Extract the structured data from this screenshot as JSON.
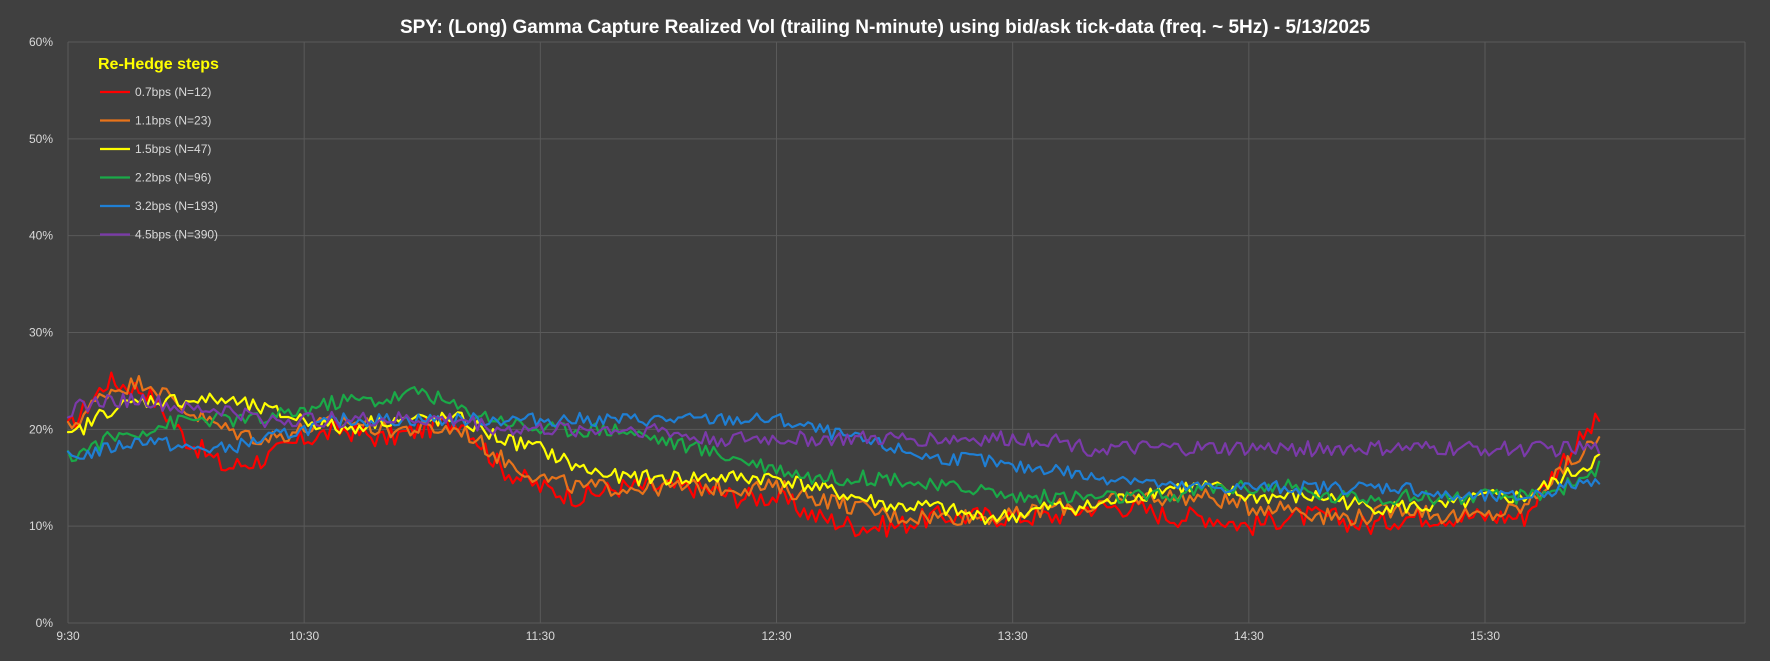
{
  "chart_data": {
    "type": "line",
    "title": "SPY: (Long) Gamma Capture Realized Vol (trailing N-minute) using bid/ask tick-data (freq. ~ 5Hz) - 5/13/2025",
    "xlabel": "",
    "ylabel": "",
    "x_range": [
      "9:30",
      "15:59"
    ],
    "x_ticks": [
      "9:30",
      "10:30",
      "11:30",
      "12:30",
      "13:30",
      "14:30",
      "15:30"
    ],
    "y_ticks": [
      "0%",
      "10%",
      "20%",
      "30%",
      "40%",
      "50%",
      "60%"
    ],
    "ylim": [
      0,
      60
    ],
    "grid": true,
    "legend_title": "Re-Hedge steps",
    "legend_position": "top-left",
    "colors": {
      "background": "#404040",
      "grid": "#5a5a5a",
      "text": "#d9d9d9",
      "title": "#ffffff",
      "legend_title": "#ffff00"
    },
    "series": [
      {
        "name": "0.7bps  (N=12)",
        "color": "#ff0000",
        "points": [
          [
            "9:30",
            20
          ],
          [
            "9:40",
            25
          ],
          [
            "9:50",
            24
          ],
          [
            "10:00",
            19
          ],
          [
            "10:10",
            16
          ],
          [
            "10:20",
            17
          ],
          [
            "10:30",
            19
          ],
          [
            "10:40",
            20
          ],
          [
            "10:50",
            19
          ],
          [
            "11:00",
            20
          ],
          [
            "11:10",
            21
          ],
          [
            "11:20",
            16
          ],
          [
            "11:30",
            14
          ],
          [
            "11:40",
            13
          ],
          [
            "11:50",
            14
          ],
          [
            "12:00",
            14
          ],
          [
            "12:10",
            14
          ],
          [
            "12:20",
            13
          ],
          [
            "12:30",
            13
          ],
          [
            "12:40",
            11
          ],
          [
            "12:50",
            10
          ],
          [
            "13:00",
            10
          ],
          [
            "13:10",
            11
          ],
          [
            "13:20",
            11
          ],
          [
            "13:30",
            11
          ],
          [
            "13:40",
            11
          ],
          [
            "13:50",
            12
          ],
          [
            "14:00",
            12
          ],
          [
            "14:10",
            11
          ],
          [
            "14:20",
            11
          ],
          [
            "14:30",
            10
          ],
          [
            "14:40",
            11
          ],
          [
            "14:50",
            11
          ],
          [
            "15:00",
            10
          ],
          [
            "15:10",
            11
          ],
          [
            "15:20",
            11
          ],
          [
            "15:30",
            11
          ],
          [
            "15:40",
            11
          ],
          [
            "15:50",
            17
          ],
          [
            "15:59",
            21
          ]
        ]
      },
      {
        "name": "1.1bps  (N=23)",
        "color": "#e8731a",
        "points": [
          [
            "9:30",
            20
          ],
          [
            "9:40",
            24
          ],
          [
            "9:50",
            25
          ],
          [
            "10:00",
            22
          ],
          [
            "10:10",
            20
          ],
          [
            "10:20",
            19
          ],
          [
            "10:30",
            20
          ],
          [
            "10:40",
            21
          ],
          [
            "10:50",
            20
          ],
          [
            "11:00",
            20
          ],
          [
            "11:10",
            20
          ],
          [
            "11:20",
            17
          ],
          [
            "11:30",
            15
          ],
          [
            "11:40",
            14
          ],
          [
            "11:50",
            14
          ],
          [
            "12:00",
            14
          ],
          [
            "12:10",
            14
          ],
          [
            "12:20",
            14
          ],
          [
            "12:30",
            14
          ],
          [
            "12:40",
            13
          ],
          [
            "12:50",
            12
          ],
          [
            "13:00",
            11
          ],
          [
            "13:10",
            11
          ],
          [
            "13:20",
            11
          ],
          [
            "13:30",
            11
          ],
          [
            "13:40",
            12
          ],
          [
            "13:50",
            12
          ],
          [
            "14:00",
            13
          ],
          [
            "14:10",
            13
          ],
          [
            "14:20",
            13
          ],
          [
            "14:30",
            12
          ],
          [
            "14:40",
            12
          ],
          [
            "14:50",
            11
          ],
          [
            "15:00",
            11
          ],
          [
            "15:10",
            12
          ],
          [
            "15:20",
            11
          ],
          [
            "15:30",
            11
          ],
          [
            "15:40",
            12
          ],
          [
            "15:50",
            16
          ],
          [
            "15:59",
            19
          ]
        ]
      },
      {
        "name": "1.5bps  (N=47)",
        "color": "#ffff00",
        "points": [
          [
            "9:30",
            19
          ],
          [
            "9:40",
            22
          ],
          [
            "9:50",
            23
          ],
          [
            "10:00",
            23
          ],
          [
            "10:10",
            23
          ],
          [
            "10:20",
            22
          ],
          [
            "10:30",
            21
          ],
          [
            "10:40",
            20
          ],
          [
            "10:50",
            21
          ],
          [
            "11:00",
            21
          ],
          [
            "11:10",
            21
          ],
          [
            "11:20",
            19
          ],
          [
            "11:30",
            18
          ],
          [
            "11:40",
            16
          ],
          [
            "11:50",
            15
          ],
          [
            "12:00",
            15
          ],
          [
            "12:10",
            15
          ],
          [
            "12:20",
            15
          ],
          [
            "12:30",
            15
          ],
          [
            "12:40",
            14
          ],
          [
            "12:50",
            13
          ],
          [
            "13:00",
            12
          ],
          [
            "13:10",
            12
          ],
          [
            "13:20",
            11
          ],
          [
            "13:30",
            11
          ],
          [
            "13:40",
            12
          ],
          [
            "13:50",
            12
          ],
          [
            "14:00",
            13
          ],
          [
            "14:10",
            14
          ],
          [
            "14:20",
            14
          ],
          [
            "14:30",
            13
          ],
          [
            "14:40",
            13
          ],
          [
            "14:50",
            13
          ],
          [
            "15:00",
            12
          ],
          [
            "15:10",
            12
          ],
          [
            "15:20",
            12
          ],
          [
            "15:30",
            13
          ],
          [
            "15:40",
            13
          ],
          [
            "15:50",
            15
          ],
          [
            "15:59",
            17
          ]
        ]
      },
      {
        "name": "2.2bps  (N=96)",
        "color": "#1aaa48",
        "points": [
          [
            "9:30",
            17
          ],
          [
            "9:40",
            19
          ],
          [
            "9:50",
            20
          ],
          [
            "10:00",
            21
          ],
          [
            "10:10",
            21
          ],
          [
            "10:20",
            21
          ],
          [
            "10:30",
            22
          ],
          [
            "10:40",
            23
          ],
          [
            "10:50",
            23
          ],
          [
            "11:00",
            24
          ],
          [
            "11:10",
            22
          ],
          [
            "11:20",
            21
          ],
          [
            "11:30",
            20
          ],
          [
            "11:40",
            20
          ],
          [
            "11:50",
            20
          ],
          [
            "12:00",
            19
          ],
          [
            "12:10",
            18
          ],
          [
            "12:20",
            17
          ],
          [
            "12:30",
            16
          ],
          [
            "12:40",
            15
          ],
          [
            "12:50",
            15
          ],
          [
            "13:00",
            15
          ],
          [
            "13:10",
            14
          ],
          [
            "13:20",
            14
          ],
          [
            "13:30",
            13
          ],
          [
            "13:40",
            13
          ],
          [
            "13:50",
            13
          ],
          [
            "14:00",
            13
          ],
          [
            "14:10",
            13
          ],
          [
            "14:20",
            14
          ],
          [
            "14:30",
            14
          ],
          [
            "14:40",
            14
          ],
          [
            "14:50",
            13
          ],
          [
            "15:00",
            13
          ],
          [
            "15:10",
            13
          ],
          [
            "15:20",
            13
          ],
          [
            "15:30",
            13
          ],
          [
            "15:40",
            13
          ],
          [
            "15:50",
            14
          ],
          [
            "15:59",
            16
          ]
        ]
      },
      {
        "name": "3.2bps  (N=193)",
        "color": "#1f7fd4",
        "points": [
          [
            "9:30",
            17
          ],
          [
            "9:40",
            18
          ],
          [
            "9:50",
            19
          ],
          [
            "10:00",
            18
          ],
          [
            "10:10",
            18
          ],
          [
            "10:20",
            19
          ],
          [
            "10:30",
            20
          ],
          [
            "10:40",
            21
          ],
          [
            "10:50",
            21
          ],
          [
            "11:00",
            21
          ],
          [
            "11:10",
            21
          ],
          [
            "11:20",
            21
          ],
          [
            "11:30",
            21
          ],
          [
            "11:40",
            21
          ],
          [
            "11:50",
            21
          ],
          [
            "12:00",
            21
          ],
          [
            "12:10",
            21
          ],
          [
            "12:20",
            21
          ],
          [
            "12:30",
            21
          ],
          [
            "12:40",
            20
          ],
          [
            "12:50",
            19
          ],
          [
            "13:00",
            18
          ],
          [
            "13:10",
            17
          ],
          [
            "13:20",
            17
          ],
          [
            "13:30",
            16
          ],
          [
            "13:40",
            16
          ],
          [
            "13:50",
            15
          ],
          [
            "14:00",
            15
          ],
          [
            "14:10",
            14
          ],
          [
            "14:20",
            14
          ],
          [
            "14:30",
            14
          ],
          [
            "14:40",
            14
          ],
          [
            "14:50",
            14
          ],
          [
            "15:00",
            14
          ],
          [
            "15:10",
            14
          ],
          [
            "15:20",
            13
          ],
          [
            "15:30",
            13
          ],
          [
            "15:40",
            13
          ],
          [
            "15:50",
            14
          ],
          [
            "15:59",
            15
          ]
        ]
      },
      {
        "name": "4.5bps  (N=390)",
        "color": "#7b3aaa",
        "points": [
          [
            "9:30",
            22
          ],
          [
            "9:40",
            23
          ],
          [
            "9:50",
            23
          ],
          [
            "10:00",
            22
          ],
          [
            "10:10",
            22
          ],
          [
            "10:20",
            21
          ],
          [
            "10:30",
            21
          ],
          [
            "10:40",
            21
          ],
          [
            "10:50",
            21
          ],
          [
            "11:00",
            21
          ],
          [
            "11:10",
            21
          ],
          [
            "11:20",
            20
          ],
          [
            "11:30",
            20
          ],
          [
            "11:40",
            20
          ],
          [
            "11:50",
            20
          ],
          [
            "12:00",
            20
          ],
          [
            "12:10",
            19
          ],
          [
            "12:20",
            19
          ],
          [
            "12:30",
            19
          ],
          [
            "12:40",
            19
          ],
          [
            "12:50",
            19
          ],
          [
            "13:00",
            19
          ],
          [
            "13:10",
            19
          ],
          [
            "13:20",
            19
          ],
          [
            "13:30",
            19
          ],
          [
            "13:40",
            19
          ],
          [
            "13:50",
            18
          ],
          [
            "14:00",
            18
          ],
          [
            "14:10",
            18
          ],
          [
            "14:20",
            18
          ],
          [
            "14:30",
            18
          ],
          [
            "14:40",
            18
          ],
          [
            "14:50",
            18
          ],
          [
            "15:00",
            18
          ],
          [
            "15:10",
            18
          ],
          [
            "15:20",
            18
          ],
          [
            "15:30",
            18
          ],
          [
            "15:40",
            18
          ],
          [
            "15:50",
            18
          ],
          [
            "15:59",
            18
          ]
        ]
      }
    ]
  }
}
